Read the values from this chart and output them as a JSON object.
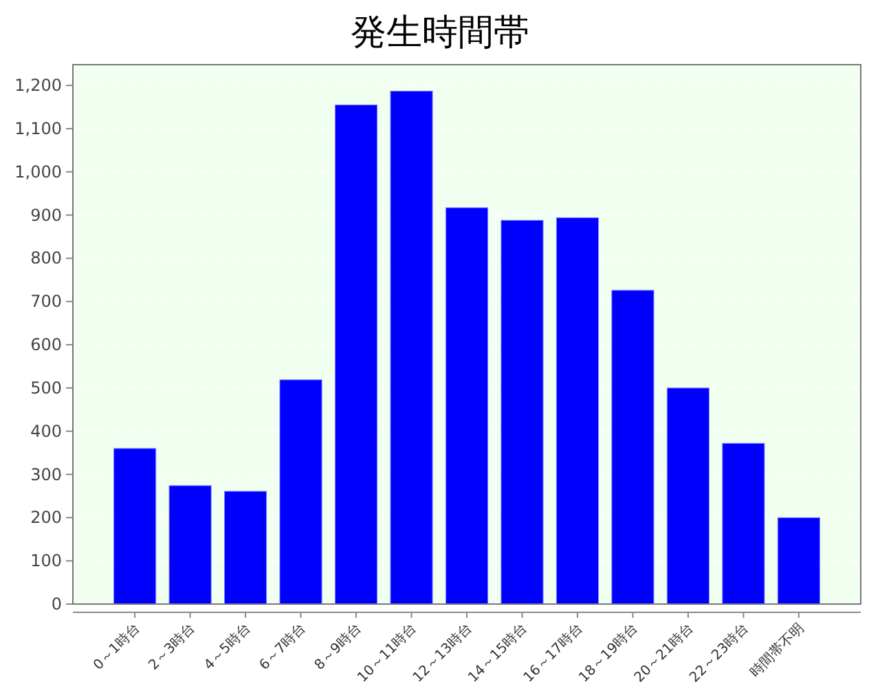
{
  "chart_data": {
    "type": "bar",
    "title": "発生時間帯",
    "categories": [
      "0～1時台",
      "2～3時台",
      "4～5時台",
      "6～7時台",
      "8～9時台",
      "10～11時台",
      "12～13時台",
      "14～15時台",
      "16～17時台",
      "18～19時台",
      "20～21時台",
      "22～23時台",
      "時間帯不明"
    ],
    "values": [
      360,
      274,
      261,
      519,
      1155,
      1187,
      917,
      888,
      894,
      726,
      500,
      372,
      200
    ],
    "color": "#0000ff",
    "ylim": [
      0,
      1248
    ],
    "yticks": [
      0,
      100,
      200,
      300,
      400,
      500,
      600,
      700,
      800,
      900,
      {
        "value": 1000,
        "label": "1,000"
      },
      {
        "value": 1100,
        "label": "1,100"
      },
      {
        "value": 1200,
        "label": "1,200"
      }
    ],
    "grid": "y"
  }
}
